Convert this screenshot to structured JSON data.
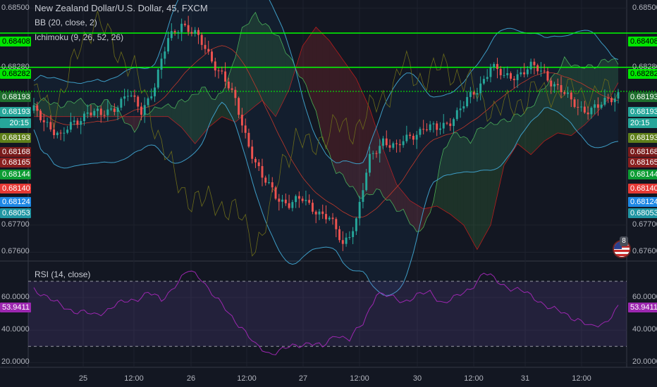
{
  "legend": {
    "symbol": "New Zealand Dollar/U.S. Dollar, 45, FXCM",
    "bb": "BB (20, close, 2)",
    "ichimoku": "Ichimoku (9, 26, 52, 26)",
    "rsi": "RSI (14, close)"
  },
  "countdown": "20:15",
  "event_badge": "8",
  "colors": {
    "background": "#131722",
    "up": "#26a69a",
    "down": "#ef5350",
    "green_line": "#00ff00",
    "bb_line": "#3d9cc5",
    "rsi_line": "#9c27b0",
    "rsi_band": "#3a1f55"
  },
  "price_axis": {
    "ticks": [
      "0.68500",
      "0.68280",
      "0.67700",
      "0.67600"
    ],
    "min": 0.6757,
    "max": 0.6853,
    "tick_values": [
      0.685,
      0.6828,
      0.677,
      0.676
    ]
  },
  "price_tags": [
    {
      "text": "0.68408",
      "bg": "#00e600",
      "fg": "#000000",
      "side": "both"
    },
    {
      "text": "0.68282",
      "bg": "#00e600",
      "fg": "#000000",
      "side": "both"
    },
    {
      "text": "0.68193",
      "bg": "#1f6f2e",
      "fg": "#ffffff",
      "side": "both"
    },
    {
      "text": "0.68193",
      "bg": "#26a69a",
      "fg": "#ffffff",
      "side": "both"
    },
    {
      "text": "20:15",
      "bg": "#26a69a",
      "fg": "#ffffff",
      "side": "both"
    },
    {
      "text": "0.68193",
      "bg": "#5f7f1a",
      "fg": "#ffffff",
      "side": "both"
    },
    {
      "text": "0.68168",
      "bg": "#7a1b1b",
      "fg": "#ffffff",
      "side": "both"
    },
    {
      "text": "0.68165",
      "bg": "#8a1f1f",
      "fg": "#ffffff",
      "side": "both"
    },
    {
      "text": "0.68144",
      "bg": "#0c9c33",
      "fg": "#ffffff",
      "side": "both"
    },
    {
      "text": "0.68140",
      "bg": "#e53935",
      "fg": "#ffffff",
      "side": "both"
    },
    {
      "text": "0.68124",
      "bg": "#1e88e5",
      "fg": "#ffffff",
      "side": "both"
    },
    {
      "text": "0.68053",
      "bg": "#2196a3",
      "fg": "#ffffff",
      "side": "both"
    }
  ],
  "rsi_axis": {
    "ticks": [
      "60.0000",
      "40.0000",
      "20.0000"
    ],
    "tick_values": [
      60,
      40,
      20
    ],
    "min": 18,
    "max": 82,
    "current": "53.9411",
    "current_value": 53.9411,
    "upper_band": 70,
    "lower_band": 30
  },
  "time_axis": {
    "labels": [
      "25",
      "12:00",
      "26",
      "12:00",
      "27",
      "12:00",
      "30",
      "12:00",
      "31",
      "12:00"
    ]
  },
  "chart_data": {
    "type": "candlestick",
    "title": "New Zealand Dollar/U.S. Dollar, 45, FXCM",
    "horizontal_levels": [
      0.68408,
      0.68282,
      0.68193
    ],
    "rsi_levels": [
      70,
      30
    ],
    "close_path": [
      [
        0,
        0.6812
      ],
      [
        4,
        0.6808
      ],
      [
        8,
        0.6802
      ],
      [
        12,
        0.6808
      ],
      [
        16,
        0.6812
      ],
      [
        20,
        0.681
      ],
      [
        24,
        0.6814
      ],
      [
        28,
        0.6818
      ],
      [
        32,
        0.6812
      ],
      [
        36,
        0.6822
      ],
      [
        40,
        0.6838
      ],
      [
        44,
        0.6845
      ],
      [
        48,
        0.684
      ],
      [
        52,
        0.6833
      ],
      [
        56,
        0.6826
      ],
      [
        60,
        0.6815
      ],
      [
        64,
        0.68
      ],
      [
        68,
        0.6787
      ],
      [
        72,
        0.6781
      ],
      [
        76,
        0.6778
      ],
      [
        80,
        0.6779
      ],
      [
        84,
        0.6776
      ],
      [
        88,
        0.6772
      ],
      [
        92,
        0.6763
      ],
      [
        96,
        0.6772
      ],
      [
        100,
        0.6794
      ],
      [
        104,
        0.6802
      ],
      [
        108,
        0.6798
      ],
      [
        112,
        0.6803
      ],
      [
        116,
        0.6806
      ],
      [
        120,
        0.6805
      ],
      [
        124,
        0.6809
      ],
      [
        128,
        0.6814
      ],
      [
        132,
        0.682
      ],
      [
        136,
        0.6829
      ],
      [
        140,
        0.6824
      ],
      [
        144,
        0.6826
      ],
      [
        148,
        0.6828
      ],
      [
        152,
        0.6826
      ],
      [
        156,
        0.6821
      ],
      [
        160,
        0.6815
      ],
      [
        164,
        0.6813
      ],
      [
        168,
        0.6813
      ],
      [
        172,
        0.6817
      ],
      [
        174,
        0.6819
      ]
    ],
    "rsi_path": [
      [
        0,
        66
      ],
      [
        6,
        57
      ],
      [
        12,
        52
      ],
      [
        18,
        49
      ],
      [
        24,
        55
      ],
      [
        30,
        59
      ],
      [
        34,
        63
      ],
      [
        38,
        58
      ],
      [
        42,
        68
      ],
      [
        46,
        76
      ],
      [
        50,
        72
      ],
      [
        54,
        60
      ],
      [
        58,
        50
      ],
      [
        62,
        42
      ],
      [
        66,
        30
      ],
      [
        70,
        26
      ],
      [
        74,
        28
      ],
      [
        78,
        30
      ],
      [
        82,
        33
      ],
      [
        86,
        29
      ],
      [
        90,
        38
      ],
      [
        94,
        34
      ],
      [
        98,
        44
      ],
      [
        102,
        63
      ],
      [
        106,
        60
      ],
      [
        110,
        58
      ],
      [
        114,
        61
      ],
      [
        118,
        63
      ],
      [
        122,
        57
      ],
      [
        126,
        60
      ],
      [
        130,
        66
      ],
      [
        134,
        75
      ],
      [
        138,
        70
      ],
      [
        142,
        66
      ],
      [
        146,
        63
      ],
      [
        150,
        59
      ],
      [
        154,
        53
      ],
      [
        158,
        50
      ],
      [
        162,
        47
      ],
      [
        166,
        41
      ],
      [
        170,
        45
      ],
      [
        174,
        54
      ]
    ]
  }
}
